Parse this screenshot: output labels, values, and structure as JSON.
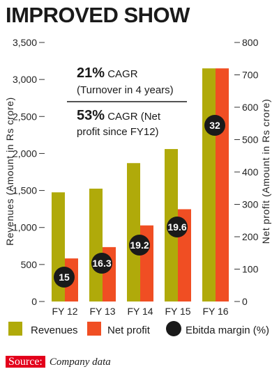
{
  "title": "IMPROVED SHOW",
  "colors": {
    "revenues": "#b0aa0a",
    "net_profit": "#f04e23",
    "ebitda": "#1a1a1a",
    "source_tag": "#e3001b"
  },
  "annotation": {
    "line1_big": "21%",
    "line1_rest": " CAGR",
    "line2": "(Turnover in 4 years)",
    "line3_big": "53%",
    "line3_rest": " CAGR (Net",
    "line4": "profit since FY12)"
  },
  "chart_data": {
    "type": "bar",
    "categories": [
      "FY 12",
      "FY 13",
      "FY 14",
      "FY 15",
      "FY 16"
    ],
    "series": [
      {
        "name": "Revenues",
        "axis": "left",
        "values": [
          1475,
          1525,
          1870,
          2060,
          3150
        ]
      },
      {
        "name": "Net profit",
        "axis": "right",
        "values": [
          133,
          168,
          235,
          285,
          720
        ]
      },
      {
        "name": "Ebitda margin (%)",
        "type": "marker",
        "values": [
          15,
          16.3,
          19.2,
          19.6,
          32
        ],
        "labels": [
          "15",
          "16.3",
          "19.2",
          "19.6",
          "32"
        ]
      }
    ],
    "ylabel": "Revenues (Amount in Rs crore)",
    "y2label": "Net profit (Amount in Rs crore)",
    "ylim": [
      0,
      3500
    ],
    "y2lim": [
      0,
      800
    ],
    "yticks": [
      "0",
      "500",
      "1,000",
      "1,500",
      "2,000",
      "2,500",
      "3,000",
      "3,500"
    ],
    "y2ticks": [
      "0",
      "100",
      "200",
      "300",
      "400",
      "500",
      "600",
      "700",
      "800"
    ],
    "legend": [
      "Revenues",
      "Net profit",
      "Ebitda margin (%)"
    ],
    "legend_position": "bottom"
  },
  "source": {
    "tag": "Source:",
    "text": "Company data"
  }
}
